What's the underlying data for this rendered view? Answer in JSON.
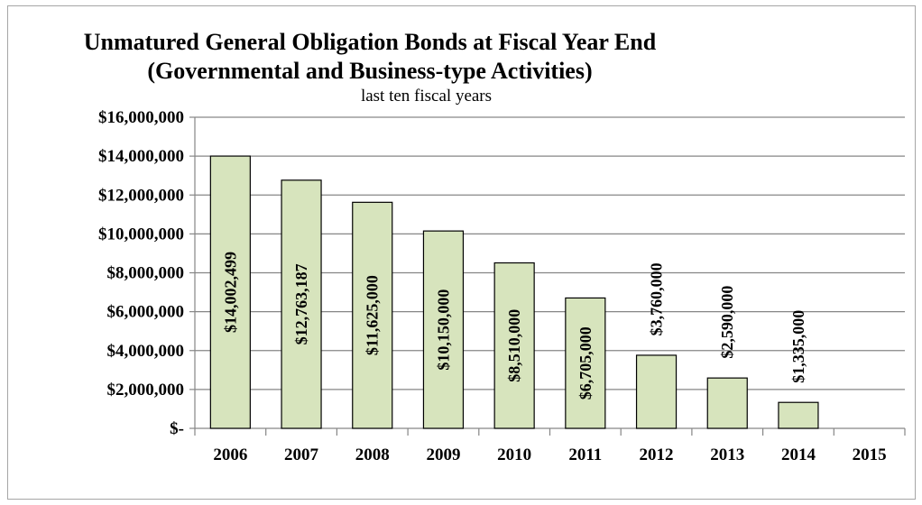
{
  "chart_data": {
    "type": "bar",
    "title": "Unmatured General Obligation Bonds at Fiscal Year End",
    "title_line2": "(Governmental and Business-type Activities)",
    "subtitle": "last ten fiscal years",
    "xlabel": "",
    "ylabel": "",
    "categories": [
      "2006",
      "2007",
      "2008",
      "2009",
      "2010",
      "2011",
      "2012",
      "2013",
      "2014",
      "2015"
    ],
    "values": [
      14002499,
      12763187,
      11625000,
      10150000,
      8510000,
      6705000,
      3760000,
      2590000,
      1335000,
      0
    ],
    "data_labels": [
      "$14,002,499",
      "$12,763,187",
      "$11,625,000",
      "$10,150,000",
      "$8,510,000",
      "$6,705,000",
      "$3,760,000",
      "$2,590,000",
      "$1,335,000",
      ""
    ],
    "y_ticks": [
      0,
      2000000,
      4000000,
      6000000,
      8000000,
      10000000,
      12000000,
      14000000,
      16000000
    ],
    "y_tick_labels": [
      "$-",
      "$2,000,000",
      "$4,000,000",
      "$6,000,000",
      "$8,000,000",
      "$10,000,000",
      "$12,000,000",
      "$14,000,000",
      "$16,000,000"
    ],
    "ylim": [
      0,
      16000000
    ],
    "grid": true,
    "legend": "none",
    "colors": {
      "bar_fill": "#d7e4bd",
      "bar_stroke": "#000000",
      "grid": "#868686"
    }
  }
}
